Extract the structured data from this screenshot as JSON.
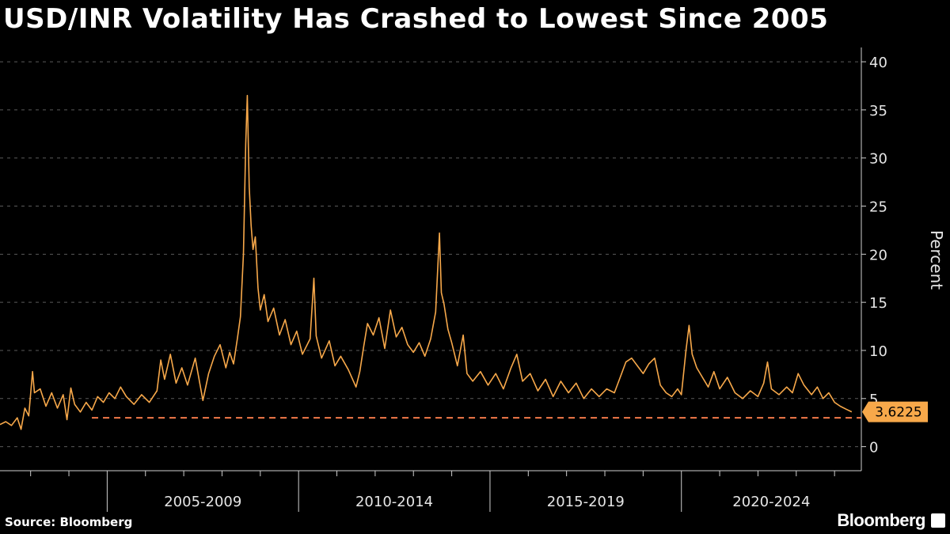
{
  "title": "USD/INR Volatility Has Crashed to Lowest Since 2005",
  "source": "Source: Bloomberg",
  "brand": "Bloomberg",
  "colors": {
    "line": "#f7a84a",
    "reference": "#f47a4a",
    "background": "#000000",
    "grid": "#5a5a5a"
  },
  "chart_data": {
    "type": "line",
    "title": "USD/INR Volatility Has Crashed to Lowest Since 2005",
    "ylabel": "Percent",
    "ylim": [
      -2.5,
      40.5
    ],
    "xlim": [
      2002.2,
      2024.7
    ],
    "yticks": [
      0,
      5,
      10,
      15,
      20,
      25,
      30,
      35,
      40
    ],
    "x_period_labels": [
      {
        "label": "2005-2009",
        "start": 2005,
        "end": 2010
      },
      {
        "label": "2010-2014",
        "start": 2010,
        "end": 2015
      },
      {
        "label": "2015-2019",
        "start": 2015,
        "end": 2020
      },
      {
        "label": "2020-2024",
        "start": 2020,
        "end": 2024.7
      }
    ],
    "x_boundaries": [
      2005,
      2010,
      2015,
      2020
    ],
    "last_value_label": "3.6225",
    "reference_line": {
      "y": 3.0
    },
    "series": [
      {
        "points": [
          [
            2002.2,
            2.3
          ],
          [
            2002.35,
            2.6
          ],
          [
            2002.5,
            2.2
          ],
          [
            2002.65,
            3.0
          ],
          [
            2002.75,
            1.8
          ],
          [
            2002.85,
            4.0
          ],
          [
            2002.95,
            3.2
          ],
          [
            2003.05,
            7.8
          ],
          [
            2003.1,
            5.6
          ],
          [
            2003.25,
            6.0
          ],
          [
            2003.4,
            4.2
          ],
          [
            2003.55,
            5.6
          ],
          [
            2003.7,
            4.0
          ],
          [
            2003.85,
            5.4
          ],
          [
            2003.95,
            2.8
          ],
          [
            2004.05,
            6.1
          ],
          [
            2004.15,
            4.4
          ],
          [
            2004.3,
            3.6
          ],
          [
            2004.45,
            4.6
          ],
          [
            2004.6,
            3.8
          ],
          [
            2004.75,
            5.2
          ],
          [
            2004.9,
            4.6
          ],
          [
            2005.05,
            5.6
          ],
          [
            2005.2,
            5.0
          ],
          [
            2005.35,
            6.2
          ],
          [
            2005.5,
            5.2
          ],
          [
            2005.7,
            4.4
          ],
          [
            2005.9,
            5.4
          ],
          [
            2006.1,
            4.6
          ],
          [
            2006.3,
            5.8
          ],
          [
            2006.4,
            9.0
          ],
          [
            2006.5,
            7.0
          ],
          [
            2006.65,
            9.6
          ],
          [
            2006.8,
            6.6
          ],
          [
            2006.95,
            8.2
          ],
          [
            2007.1,
            6.4
          ],
          [
            2007.3,
            9.2
          ],
          [
            2007.5,
            4.8
          ],
          [
            2007.65,
            7.6
          ],
          [
            2007.8,
            9.4
          ],
          [
            2007.95,
            10.6
          ],
          [
            2008.1,
            8.2
          ],
          [
            2008.2,
            9.8
          ],
          [
            2008.3,
            8.6
          ],
          [
            2008.4,
            11.2
          ],
          [
            2008.48,
            13.5
          ],
          [
            2008.56,
            20.0
          ],
          [
            2008.62,
            31.5
          ],
          [
            2008.66,
            36.5
          ],
          [
            2008.71,
            27.0
          ],
          [
            2008.76,
            23.0
          ],
          [
            2008.81,
            20.5
          ],
          [
            2008.87,
            21.8
          ],
          [
            2008.94,
            16.5
          ],
          [
            2009.0,
            14.2
          ],
          [
            2009.1,
            15.8
          ],
          [
            2009.2,
            13.0
          ],
          [
            2009.35,
            14.4
          ],
          [
            2009.5,
            11.6
          ],
          [
            2009.65,
            13.2
          ],
          [
            2009.8,
            10.6
          ],
          [
            2009.95,
            12.0
          ],
          [
            2010.1,
            9.6
          ],
          [
            2010.3,
            11.2
          ],
          [
            2010.4,
            17.5
          ],
          [
            2010.46,
            11.5
          ],
          [
            2010.6,
            9.2
          ],
          [
            2010.8,
            11.0
          ],
          [
            2010.95,
            8.4
          ],
          [
            2011.1,
            9.4
          ],
          [
            2011.3,
            8.0
          ],
          [
            2011.5,
            6.2
          ],
          [
            2011.6,
            7.8
          ],
          [
            2011.7,
            10.4
          ],
          [
            2011.8,
            12.8
          ],
          [
            2011.95,
            11.6
          ],
          [
            2012.1,
            13.4
          ],
          [
            2012.25,
            10.2
          ],
          [
            2012.4,
            14.2
          ],
          [
            2012.55,
            11.4
          ],
          [
            2012.7,
            12.4
          ],
          [
            2012.85,
            10.6
          ],
          [
            2013.0,
            9.8
          ],
          [
            2013.15,
            10.8
          ],
          [
            2013.3,
            9.4
          ],
          [
            2013.45,
            11.2
          ],
          [
            2013.58,
            14.0
          ],
          [
            2013.64,
            19.0
          ],
          [
            2013.68,
            22.2
          ],
          [
            2013.73,
            16.0
          ],
          [
            2013.8,
            14.8
          ],
          [
            2013.9,
            12.2
          ],
          [
            2014.0,
            10.8
          ],
          [
            2014.15,
            8.4
          ],
          [
            2014.3,
            11.6
          ],
          [
            2014.4,
            7.6
          ],
          [
            2014.55,
            6.8
          ],
          [
            2014.75,
            7.8
          ],
          [
            2014.95,
            6.4
          ],
          [
            2015.15,
            7.6
          ],
          [
            2015.35,
            6.0
          ],
          [
            2015.55,
            8.2
          ],
          [
            2015.7,
            9.6
          ],
          [
            2015.85,
            6.8
          ],
          [
            2016.05,
            7.6
          ],
          [
            2016.25,
            5.8
          ],
          [
            2016.45,
            7.0
          ],
          [
            2016.65,
            5.2
          ],
          [
            2016.85,
            6.8
          ],
          [
            2017.05,
            5.6
          ],
          [
            2017.25,
            6.6
          ],
          [
            2017.45,
            5.0
          ],
          [
            2017.65,
            6.0
          ],
          [
            2017.85,
            5.2
          ],
          [
            2018.05,
            6.0
          ],
          [
            2018.25,
            5.6
          ],
          [
            2018.4,
            7.2
          ],
          [
            2018.55,
            8.8
          ],
          [
            2018.7,
            9.2
          ],
          [
            2018.85,
            8.4
          ],
          [
            2019.0,
            7.6
          ],
          [
            2019.15,
            8.6
          ],
          [
            2019.3,
            9.2
          ],
          [
            2019.45,
            6.4
          ],
          [
            2019.6,
            5.6
          ],
          [
            2019.75,
            5.2
          ],
          [
            2019.9,
            6.0
          ],
          [
            2020.0,
            5.4
          ],
          [
            2020.12,
            10.0
          ],
          [
            2020.2,
            12.6
          ],
          [
            2020.28,
            9.6
          ],
          [
            2020.4,
            8.2
          ],
          [
            2020.55,
            7.2
          ],
          [
            2020.7,
            6.2
          ],
          [
            2020.85,
            7.8
          ],
          [
            2021.0,
            6.0
          ],
          [
            2021.2,
            7.2
          ],
          [
            2021.4,
            5.6
          ],
          [
            2021.6,
            5.0
          ],
          [
            2021.8,
            5.8
          ],
          [
            2022.0,
            5.2
          ],
          [
            2022.15,
            6.6
          ],
          [
            2022.25,
            8.8
          ],
          [
            2022.35,
            6.0
          ],
          [
            2022.55,
            5.4
          ],
          [
            2022.75,
            6.2
          ],
          [
            2022.9,
            5.6
          ],
          [
            2023.05,
            7.6
          ],
          [
            2023.2,
            6.4
          ],
          [
            2023.4,
            5.4
          ],
          [
            2023.55,
            6.2
          ],
          [
            2023.7,
            5.0
          ],
          [
            2023.85,
            5.6
          ],
          [
            2024.0,
            4.6
          ],
          [
            2024.15,
            4.2
          ],
          [
            2024.3,
            3.9
          ],
          [
            2024.45,
            3.62
          ]
        ]
      }
    ]
  }
}
